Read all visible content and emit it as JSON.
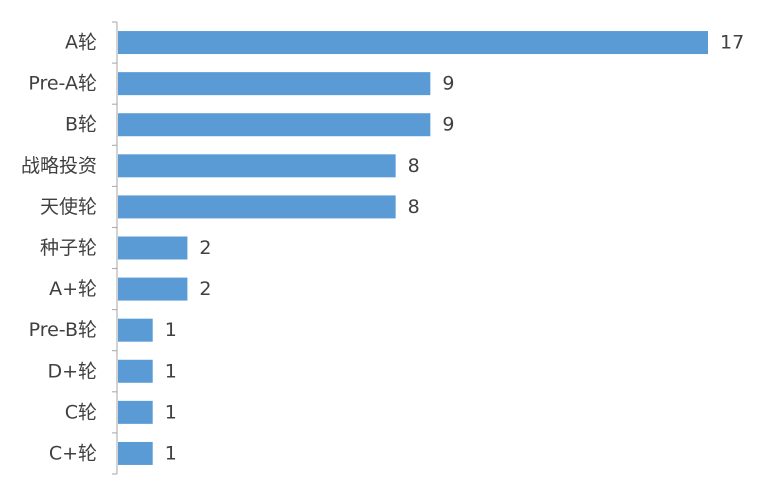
{
  "chart_data": {
    "type": "bar",
    "orientation": "horizontal",
    "categories": [
      "A轮",
      "Pre-A轮",
      "B轮",
      "战略投资",
      "天使轮",
      "种子轮",
      "A+轮",
      "Pre-B轮",
      "D+轮",
      "C轮",
      "C+轮"
    ],
    "values": [
      17,
      9,
      9,
      8,
      8,
      2,
      2,
      1,
      1,
      1,
      1
    ],
    "xlim": [
      0,
      17
    ],
    "grid": false,
    "legend": "none",
    "data_labels": true,
    "bar_color": "#5b9bd5",
    "axis_color": "#a6a6a6",
    "text_color": "#404040"
  }
}
